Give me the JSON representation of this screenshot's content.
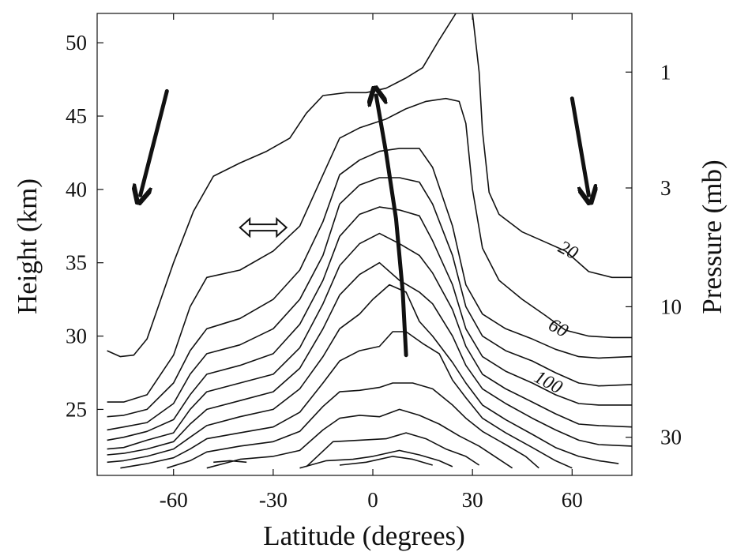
{
  "chart_data": {
    "type": "contour",
    "title": "",
    "xlabel": "Latitude (degrees)",
    "ylabel": "Height (km)",
    "y2label": "Pressure (mb)",
    "xlim": [
      -83,
      78
    ],
    "ylim": [
      20.5,
      52
    ],
    "xticks": [
      -60,
      -30,
      0,
      30,
      60
    ],
    "xtick_labels": [
      "-60",
      "-30",
      "0",
      "30",
      "60"
    ],
    "yticks": [
      25,
      30,
      35,
      40,
      45,
      50
    ],
    "ytick_labels": [
      "25",
      "30",
      "35",
      "40",
      "45",
      "50"
    ],
    "y2ticks": [
      {
        "label": "1",
        "height": 48
      },
      {
        "label": "3",
        "height": 40.1
      },
      {
        "label": "10",
        "height": 32
      },
      {
        "label": "30",
        "height": 23.1
      }
    ],
    "contour_labels": [
      {
        "text": "20",
        "x": 58,
        "y": 35.5
      },
      {
        "text": "60",
        "x": 55,
        "y": 30.2
      },
      {
        "text": "100",
        "x": 52,
        "y": 26.5
      }
    ],
    "contours": [
      {
        "points": [
          [
            -80,
            29
          ],
          [
            -76,
            28.6
          ],
          [
            -72,
            28.7
          ],
          [
            -68,
            29.8
          ],
          [
            -60,
            35
          ],
          [
            -54,
            38.5
          ],
          [
            -48,
            40.9
          ],
          [
            -40,
            41.8
          ],
          [
            -32,
            42.6
          ],
          [
            -25,
            43.5
          ],
          [
            -20,
            45.2
          ],
          [
            -15,
            46.4
          ],
          [
            -8,
            46.6
          ],
          [
            -2,
            46.6
          ],
          [
            4,
            46.9
          ],
          [
            10,
            47.6
          ],
          [
            15,
            48.3
          ],
          [
            20,
            50.2
          ],
          [
            25,
            52
          ]
        ]
      },
      {
        "points": [
          [
            30,
            52
          ],
          [
            32,
            48
          ],
          [
            33,
            44
          ],
          [
            35,
            39.8
          ],
          [
            38,
            38.3
          ],
          [
            45,
            37.1
          ],
          [
            52,
            36.4
          ],
          [
            58,
            35.8
          ],
          [
            65,
            34.4
          ],
          [
            72,
            34.0
          ],
          [
            78,
            34.0
          ]
        ]
      },
      {
        "points": [
          [
            -80,
            25.5
          ],
          [
            -75,
            25.5
          ],
          [
            -68,
            26
          ],
          [
            -60,
            28.7
          ],
          [
            -55,
            32
          ],
          [
            -50,
            34
          ],
          [
            -40,
            34.5
          ],
          [
            -30,
            35.8
          ],
          [
            -22,
            37.5
          ],
          [
            -15,
            41
          ],
          [
            -10,
            43.5
          ],
          [
            -4,
            44.2
          ],
          [
            4,
            44.8
          ],
          [
            10,
            45.5
          ],
          [
            16,
            46
          ],
          [
            22,
            46.2
          ],
          [
            26,
            46
          ],
          [
            28,
            44.5
          ],
          [
            30,
            40
          ],
          [
            33,
            36
          ],
          [
            38,
            33.8
          ],
          [
            45,
            32.5
          ],
          [
            52,
            31.4
          ],
          [
            58,
            30.4
          ],
          [
            65,
            30
          ],
          [
            72,
            29.9
          ],
          [
            78,
            29.9
          ]
        ]
      },
      {
        "points": [
          [
            -80,
            24.5
          ],
          [
            -75,
            24.6
          ],
          [
            -68,
            25
          ],
          [
            -60,
            26.8
          ],
          [
            -55,
            29
          ],
          [
            -50,
            30.5
          ],
          [
            -40,
            31.2
          ],
          [
            -30,
            32.5
          ],
          [
            -22,
            34.5
          ],
          [
            -15,
            37.8
          ],
          [
            -10,
            41
          ],
          [
            -4,
            42
          ],
          [
            2,
            42.6
          ],
          [
            8,
            42.8
          ],
          [
            14,
            42.8
          ],
          [
            18,
            41.5
          ],
          [
            24,
            37.5
          ],
          [
            28,
            33.5
          ],
          [
            33,
            31.5
          ],
          [
            40,
            30.5
          ],
          [
            48,
            29.8
          ],
          [
            55,
            29.1
          ],
          [
            62,
            28.6
          ],
          [
            68,
            28.5
          ],
          [
            78,
            28.6
          ]
        ]
      },
      {
        "points": [
          [
            -80,
            23.6
          ],
          [
            -75,
            23.8
          ],
          [
            -68,
            24.1
          ],
          [
            -60,
            25.4
          ],
          [
            -55,
            27.4
          ],
          [
            -50,
            28.8
          ],
          [
            -40,
            29.4
          ],
          [
            -30,
            30.5
          ],
          [
            -22,
            32.5
          ],
          [
            -15,
            35.5
          ],
          [
            -10,
            39
          ],
          [
            -4,
            40.3
          ],
          [
            2,
            40.8
          ],
          [
            8,
            40.8
          ],
          [
            14,
            40.5
          ],
          [
            18,
            39
          ],
          [
            24,
            35.5
          ],
          [
            28,
            32
          ],
          [
            33,
            30
          ],
          [
            40,
            29
          ],
          [
            48,
            28.3
          ],
          [
            55,
            27.5
          ],
          [
            62,
            26.8
          ],
          [
            68,
            26.6
          ],
          [
            78,
            26.7
          ]
        ]
      },
      {
        "points": [
          [
            -80,
            22.9
          ],
          [
            -75,
            23.1
          ],
          [
            -68,
            23.5
          ],
          [
            -60,
            24.3
          ],
          [
            -55,
            26
          ],
          [
            -50,
            27.4
          ],
          [
            -40,
            28
          ],
          [
            -30,
            28.8
          ],
          [
            -22,
            30.8
          ],
          [
            -15,
            33.8
          ],
          [
            -10,
            36.8
          ],
          [
            -4,
            38.3
          ],
          [
            2,
            38.8
          ],
          [
            8,
            38.6
          ],
          [
            14,
            38.2
          ],
          [
            18,
            36.5
          ],
          [
            24,
            33.5
          ],
          [
            28,
            30.5
          ],
          [
            33,
            28.6
          ],
          [
            40,
            27.6
          ],
          [
            48,
            26.8
          ],
          [
            55,
            26
          ],
          [
            62,
            25.4
          ],
          [
            68,
            25.3
          ],
          [
            78,
            25.3
          ]
        ]
      },
      {
        "points": [
          [
            -80,
            22.3
          ],
          [
            -75,
            22.4
          ],
          [
            -68,
            22.9
          ],
          [
            -60,
            23.4
          ],
          [
            -55,
            25
          ],
          [
            -50,
            26.2
          ],
          [
            -40,
            26.8
          ],
          [
            -30,
            27.4
          ],
          [
            -22,
            29.2
          ],
          [
            -15,
            32.2
          ],
          [
            -10,
            34.8
          ],
          [
            -4,
            36.3
          ],
          [
            2,
            37
          ],
          [
            8,
            36.3
          ],
          [
            14,
            35.5
          ],
          [
            18,
            34.3
          ],
          [
            24,
            31.8
          ],
          [
            28,
            29.3
          ],
          [
            33,
            27.4
          ],
          [
            40,
            26.4
          ],
          [
            48,
            25.5
          ],
          [
            55,
            24.7
          ],
          [
            62,
            24
          ],
          [
            68,
            23.9
          ],
          [
            78,
            23.8
          ]
        ]
      },
      {
        "points": [
          [
            -80,
            21.9
          ],
          [
            -75,
            22
          ],
          [
            -68,
            22.3
          ],
          [
            -60,
            22.8
          ],
          [
            -55,
            24
          ],
          [
            -50,
            25
          ],
          [
            -40,
            25.6
          ],
          [
            -30,
            26.2
          ],
          [
            -22,
            27.8
          ],
          [
            -15,
            30.5
          ],
          [
            -10,
            32.8
          ],
          [
            -4,
            34.2
          ],
          [
            2,
            35
          ],
          [
            8,
            33.8
          ],
          [
            14,
            33
          ],
          [
            18,
            32.2
          ],
          [
            24,
            30
          ],
          [
            28,
            28
          ],
          [
            33,
            26.4
          ],
          [
            40,
            25.4
          ],
          [
            48,
            24.4
          ],
          [
            55,
            23.6
          ],
          [
            62,
            22.9
          ],
          [
            68,
            22.6
          ],
          [
            78,
            22.5
          ]
        ]
      },
      {
        "points": [
          [
            -80,
            21.4
          ],
          [
            -75,
            21.5
          ],
          [
            -68,
            21.8
          ],
          [
            -60,
            22.3
          ],
          [
            -55,
            23.1
          ],
          [
            -50,
            23.9
          ],
          [
            -40,
            24.5
          ],
          [
            -30,
            25
          ],
          [
            -22,
            26.4
          ],
          [
            -15,
            28.6
          ],
          [
            -10,
            30.5
          ],
          [
            -4,
            31.5
          ],
          [
            0,
            32.5
          ],
          [
            5,
            33.5
          ],
          [
            10,
            33
          ],
          [
            14,
            31
          ],
          [
            18,
            30
          ],
          [
            24,
            28.2
          ],
          [
            28,
            26.8
          ],
          [
            33,
            25.3
          ],
          [
            40,
            24.3
          ],
          [
            48,
            23.3
          ],
          [
            55,
            22.4
          ],
          [
            62,
            21.8
          ],
          [
            68,
            21.5
          ],
          [
            74,
            21.3
          ]
        ]
      },
      {
        "points": [
          [
            -76,
            21
          ],
          [
            -68,
            21.3
          ],
          [
            -60,
            21.7
          ],
          [
            -55,
            22.3
          ],
          [
            -50,
            23
          ],
          [
            -40,
            23.4
          ],
          [
            -30,
            23.8
          ],
          [
            -22,
            24.8
          ],
          [
            -15,
            26.8
          ],
          [
            -10,
            28.3
          ],
          [
            -4,
            29
          ],
          [
            2,
            29.3
          ],
          [
            6,
            30.3
          ],
          [
            10,
            30.3
          ],
          [
            15,
            29.5
          ],
          [
            20,
            28.8
          ],
          [
            24,
            27
          ],
          [
            28,
            25.8
          ],
          [
            33,
            24.4
          ],
          [
            40,
            23.4
          ],
          [
            48,
            22.4
          ],
          [
            55,
            21.5
          ],
          [
            60,
            21
          ]
        ]
      },
      {
        "points": [
          [
            -62,
            21
          ],
          [
            -55,
            21.5
          ],
          [
            -50,
            22.1
          ],
          [
            -40,
            22.5
          ],
          [
            -30,
            22.8
          ],
          [
            -22,
            23.5
          ],
          [
            -15,
            25.2
          ],
          [
            -10,
            26.2
          ],
          [
            -4,
            26.3
          ],
          [
            2,
            26.5
          ],
          [
            6,
            26.8
          ],
          [
            12,
            26.8
          ],
          [
            18,
            26.4
          ],
          [
            24,
            25.3
          ],
          [
            28,
            24.4
          ],
          [
            33,
            23.5
          ],
          [
            40,
            22.6
          ],
          [
            46,
            21.8
          ],
          [
            50,
            21
          ]
        ]
      },
      {
        "points": [
          [
            -50,
            21
          ],
          [
            -40,
            21.6
          ],
          [
            -30,
            21.8
          ],
          [
            -22,
            22.2
          ],
          [
            -15,
            23.6
          ],
          [
            -10,
            24.4
          ],
          [
            -4,
            24.6
          ],
          [
            2,
            24.5
          ],
          [
            8,
            25
          ],
          [
            14,
            24.6
          ],
          [
            20,
            24
          ],
          [
            26,
            23.2
          ],
          [
            32,
            22.5
          ],
          [
            38,
            21.6
          ],
          [
            42,
            21
          ]
        ]
      },
      {
        "points": [
          [
            -48,
            21.4
          ],
          [
            -43,
            21.5
          ],
          [
            -38,
            21.4
          ]
        ]
      },
      {
        "points": [
          [
            -20,
            21.1
          ],
          [
            -12,
            22.8
          ],
          [
            -4,
            22.9
          ],
          [
            4,
            23
          ],
          [
            10,
            23.4
          ],
          [
            16,
            23
          ],
          [
            22,
            22.3
          ],
          [
            28,
            21.8
          ],
          [
            32,
            21.2
          ]
        ]
      },
      {
        "points": [
          [
            -22,
            21
          ],
          [
            -14,
            21.5
          ],
          [
            -6,
            21.6
          ],
          [
            0,
            21.8
          ],
          [
            8,
            22.2
          ],
          [
            14,
            21.9
          ],
          [
            20,
            21.5
          ],
          [
            24,
            21.1
          ]
        ]
      },
      {
        "points": [
          [
            -10,
            21.2
          ],
          [
            -2,
            21.4
          ],
          [
            6,
            21.8
          ],
          [
            12,
            21.6
          ],
          [
            18,
            21.2
          ]
        ]
      }
    ],
    "arrows": [
      {
        "kind": "descent",
        "from": [
          -62,
          46.7
        ],
        "to": [
          -70,
          39.6
        ]
      },
      {
        "kind": "descent",
        "from": [
          60,
          46.2
        ],
        "to": [
          65,
          39.6
        ]
      },
      {
        "kind": "ascent",
        "path": [
          [
            10,
            28.7
          ],
          [
            9,
            33
          ],
          [
            7,
            38
          ],
          [
            4,
            42.5
          ],
          [
            1,
            46.4
          ]
        ]
      },
      {
        "kind": "mixing",
        "center": [
          -33,
          37.4
        ],
        "half_width": 7
      }
    ]
  }
}
